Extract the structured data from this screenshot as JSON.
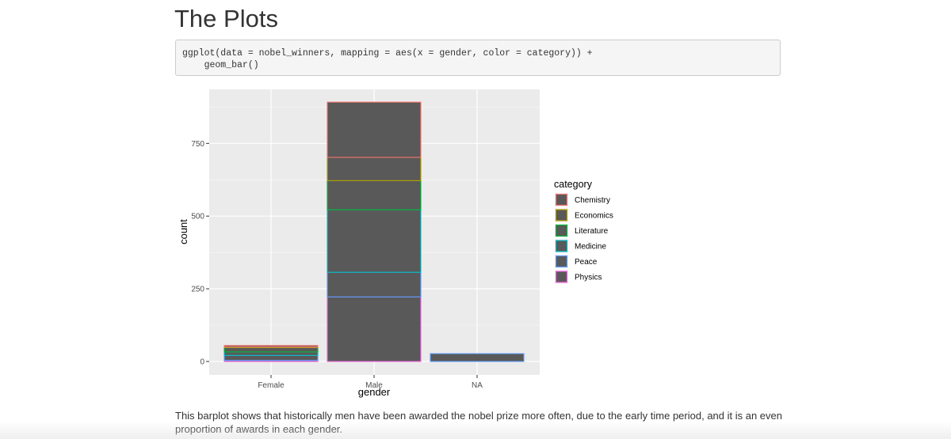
{
  "page": {
    "title": "The Plots",
    "code_lines": [
      "ggplot(data = nobel_winners, mapping = aes(x = gender, color = category)) +",
      "    geom_bar()"
    ],
    "caption": "This barplot shows that historically men have been awarded the nobel prize more often, due to the early time period, and it is an even proportion of awards in each gender."
  },
  "chart_data": {
    "type": "bar",
    "stacked": true,
    "xlabel": "gender",
    "ylabel": "count",
    "categories": [
      "Female",
      "Male",
      "NA"
    ],
    "y_ticks": [
      0,
      250,
      500,
      750
    ],
    "ylim": [
      0,
      930
    ],
    "grid": true,
    "legend_position": "right",
    "legend_title": "category",
    "bar_fill": "#595959",
    "panel_background": "#ebebeb",
    "series": [
      {
        "name": "Chemistry",
        "color": "#F8766D",
        "values": [
          5,
          190,
          0
        ]
      },
      {
        "name": "Economics",
        "color": "#B79F00",
        "values": [
          2,
          80,
          0
        ]
      },
      {
        "name": "Literature",
        "color": "#00BA38",
        "values": [
          15,
          100,
          0
        ]
      },
      {
        "name": "Medicine",
        "color": "#00BFC4",
        "values": [
          12,
          215,
          0
        ]
      },
      {
        "name": "Peace",
        "color": "#619CFF",
        "values": [
          17,
          85,
          27
        ]
      },
      {
        "name": "Physics",
        "color": "#F564E3",
        "values": [
          4,
          222,
          0
        ]
      }
    ]
  }
}
